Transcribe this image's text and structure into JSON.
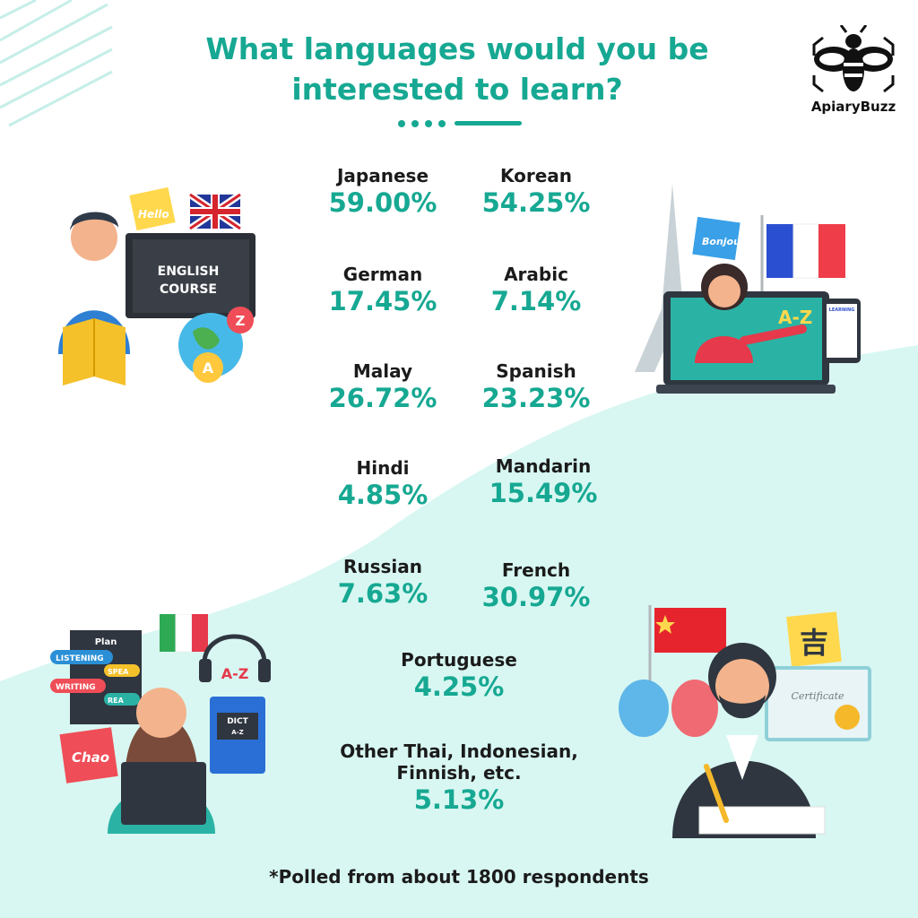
{
  "title_line1": "What languages would you be",
  "title_line2": "interested to learn?",
  "brand": {
    "name": "ApiaryBuzz",
    "icon": "bee-icon"
  },
  "stats": [
    {
      "language": "Japanese",
      "percent": "59.00%"
    },
    {
      "language": "Korean",
      "percent": "54.25%"
    },
    {
      "language": "German",
      "percent": "17.45%"
    },
    {
      "language": "Arabic",
      "percent": "7.14%"
    },
    {
      "language": "Malay",
      "percent": "26.72%"
    },
    {
      "language": "Spanish",
      "percent": "23.23%"
    },
    {
      "language": "Hindi",
      "percent": "4.85%"
    },
    {
      "language": "Mandarin",
      "percent": "15.49%"
    },
    {
      "language": "Russian",
      "percent": "7.63%"
    },
    {
      "language": "French",
      "percent": "30.97%"
    },
    {
      "language": "Portuguese",
      "percent": "4.25%"
    }
  ],
  "other": {
    "line1": "Other Thai, Indonesian,",
    "line2": "Finnish, etc.",
    "percent": "5.13%"
  },
  "footnote": "*Polled from about 1800 respondents",
  "illustrations": {
    "english": {
      "board_line1": "ENGLISH",
      "board_line2": "COURSE",
      "note": "Hello",
      "bubble_a": "A",
      "bubble_z": "Z"
    },
    "french": {
      "note": "Bonjour",
      "screen": "A-Z",
      "tablet": "LEARNING"
    },
    "italian": {
      "board_title": "Plan",
      "tag1": "LISTENING",
      "tag2": "WRITING",
      "tag3": "SPEA",
      "tag4": "REA",
      "note": "Chao",
      "headphone": "A-Z",
      "book_line1": "DICT",
      "book_line2": "A-Z"
    },
    "chinese": {
      "glyph": "吉",
      "certificate": "Certificate"
    }
  },
  "colors": {
    "accent": "#16a892",
    "mint": "#d8f7f2",
    "text": "#1b1b1b"
  }
}
